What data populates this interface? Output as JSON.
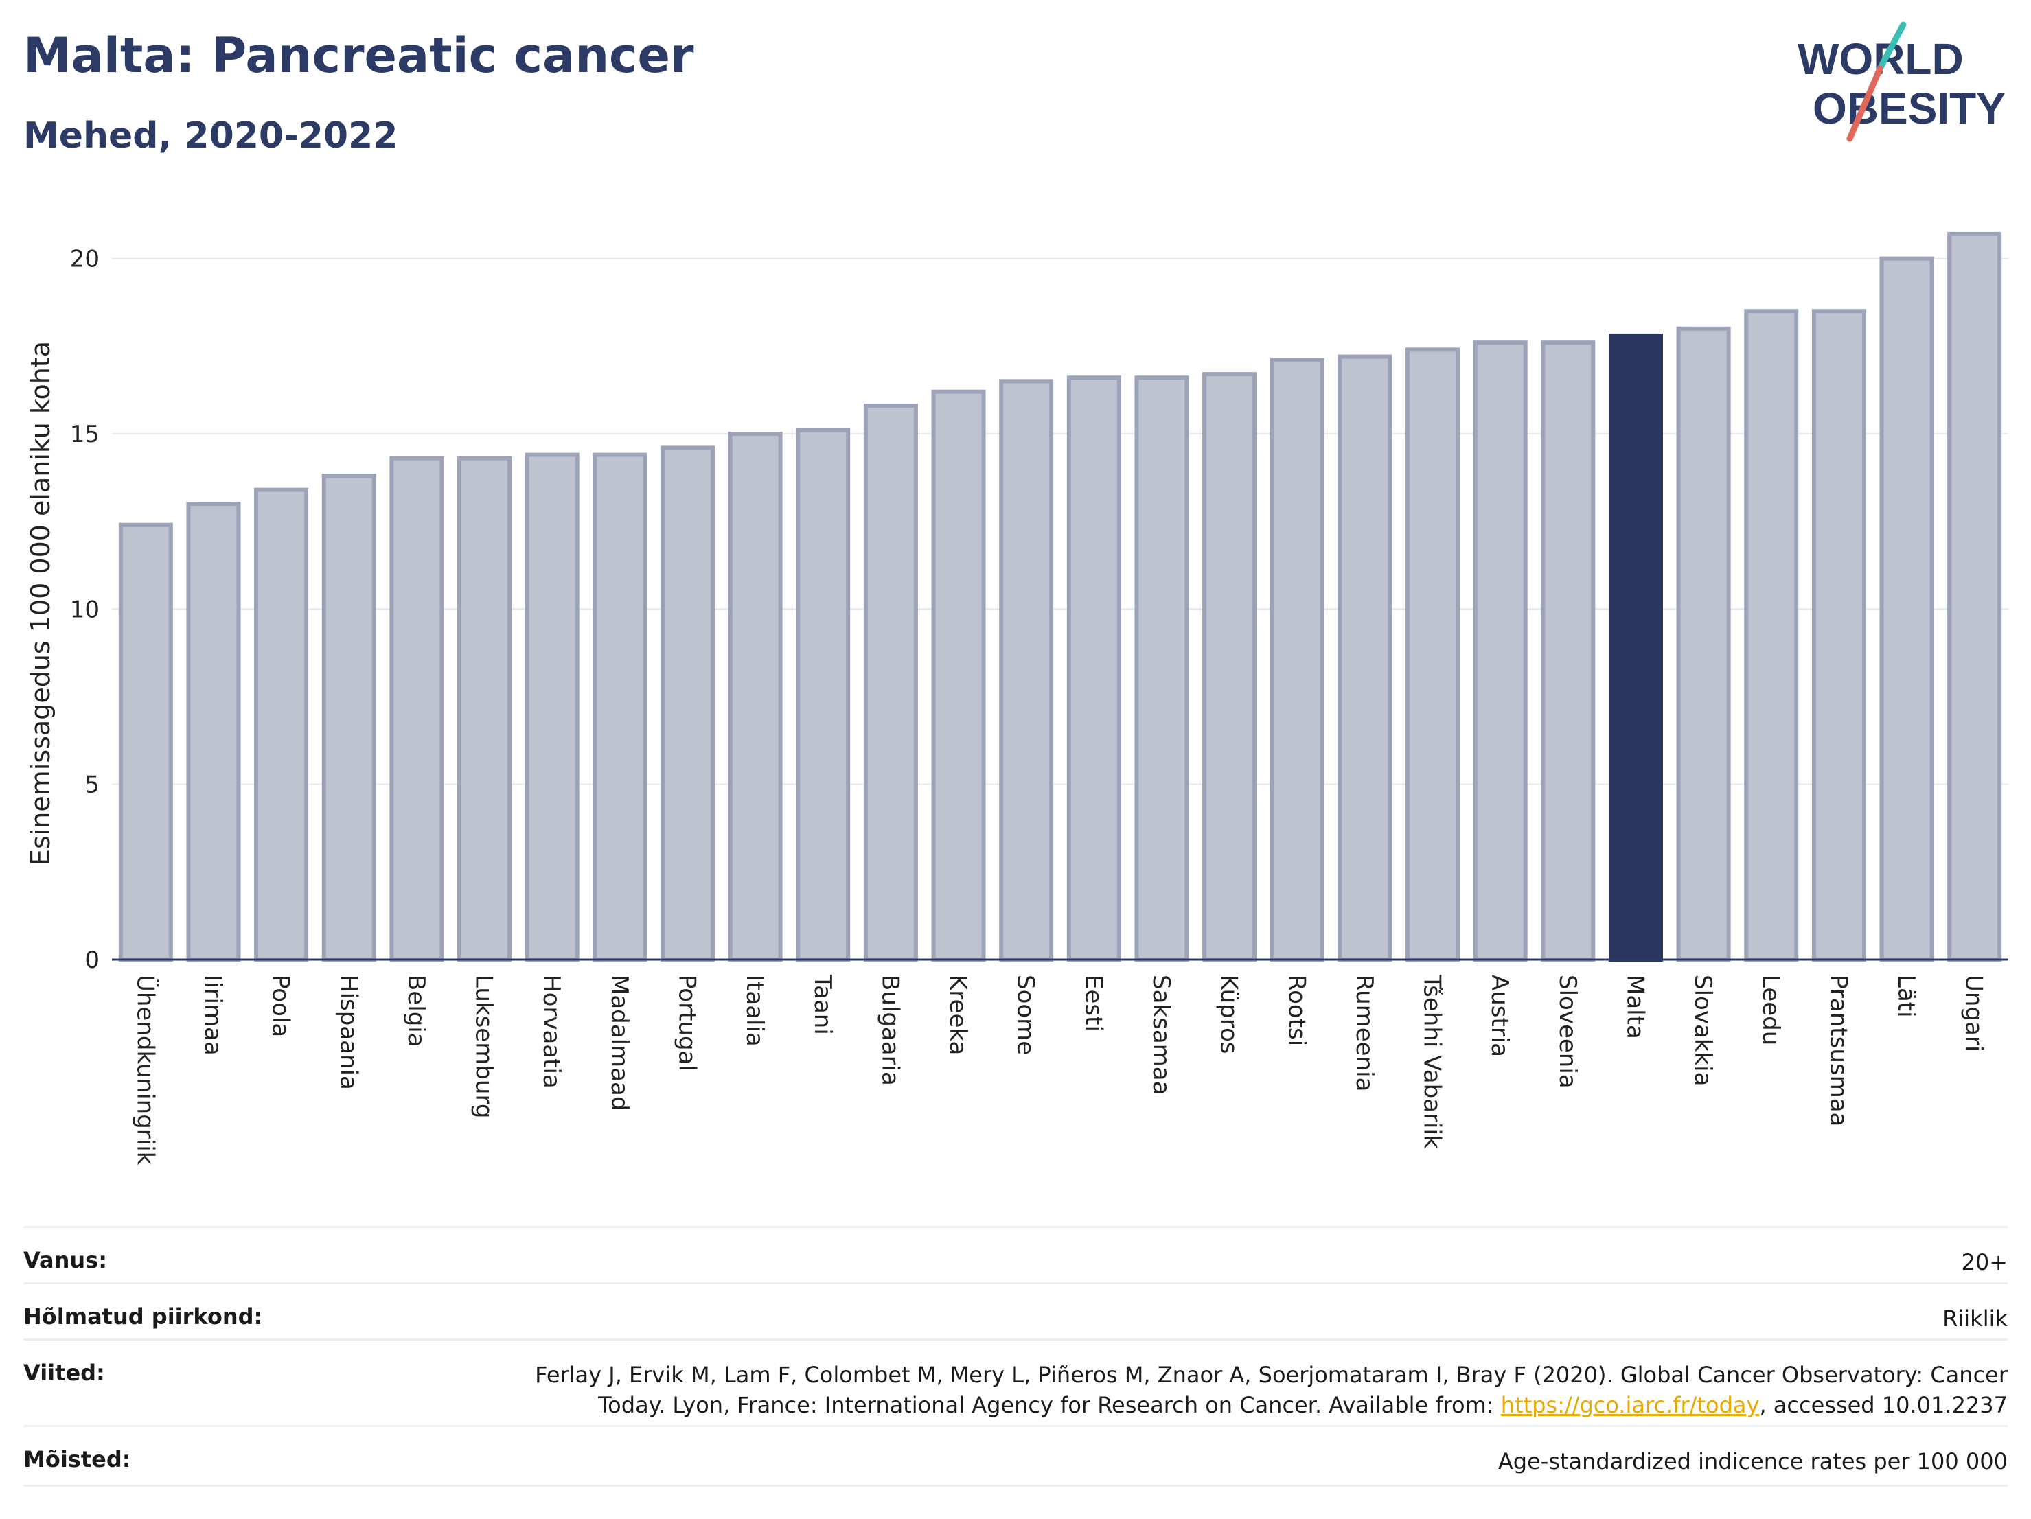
{
  "header": {
    "title": "Malta: Pancreatic cancer",
    "subtitle": "Mehed, 2020-2022"
  },
  "logo": {
    "line1": "WORLD",
    "line2": "OBESITY"
  },
  "colors": {
    "bar": "#bfc3d0",
    "bar_stroke": "#9ca2b8",
    "highlight": "#2a3560",
    "text": "#2c3a66"
  },
  "chart_data": {
    "type": "bar",
    "ylabel": "Esinemissagedus 100 000 elaniku kohta",
    "ylim": [
      0,
      21.5
    ],
    "yticks": [
      0,
      5,
      10,
      15,
      20
    ],
    "grid": true,
    "highlight": "Malta",
    "categories": [
      "Ühendkuningriik",
      "Iirimaa",
      "Poola",
      "Hispaania",
      "Belgia",
      "Luksemburg",
      "Horvaatia",
      "Madalmaad",
      "Portugal",
      "Itaalia",
      "Taani",
      "Bulgaaria",
      "Kreeka",
      "Soome",
      "Eesti",
      "Saksamaa",
      "Küpros",
      "Rootsi",
      "Rumeenia",
      "Tšehhi Vabariik",
      "Austria",
      "Sloveenia",
      "Malta",
      "Slovakkia",
      "Leedu",
      "Prantsusmaa",
      "Läti",
      "Ungari"
    ],
    "values": [
      12.4,
      13.0,
      13.4,
      13.8,
      14.3,
      14.3,
      14.4,
      14.4,
      14.6,
      15.0,
      15.1,
      15.8,
      16.2,
      16.5,
      16.6,
      16.6,
      16.7,
      17.1,
      17.2,
      17.4,
      17.6,
      17.6,
      17.8,
      18.0,
      18.5,
      18.5,
      20.0,
      20.7
    ]
  },
  "meta": {
    "age_label": "Vanus:",
    "age_value": "20+",
    "region_label": "Hõlmatud piirkond:",
    "region_value": "Riiklik",
    "refs_label": "Viited:",
    "refs_text1": "Ferlay J, Ervik M, Lam F, Colombet M, Mery L, Piñeros M, Znaor A, Soerjomataram I, Bray F (2020). Global Cancer Observatory: Cancer",
    "refs_text2": "Today. Lyon, France: International Agency for Research on Cancer. Available from: ",
    "refs_link": "https://gco.iarc.fr/today",
    "refs_text3": ", accessed 10.01.2237",
    "def_label": "Mõisted:",
    "def_value": "Age-standardized indicence rates per 100 000"
  }
}
